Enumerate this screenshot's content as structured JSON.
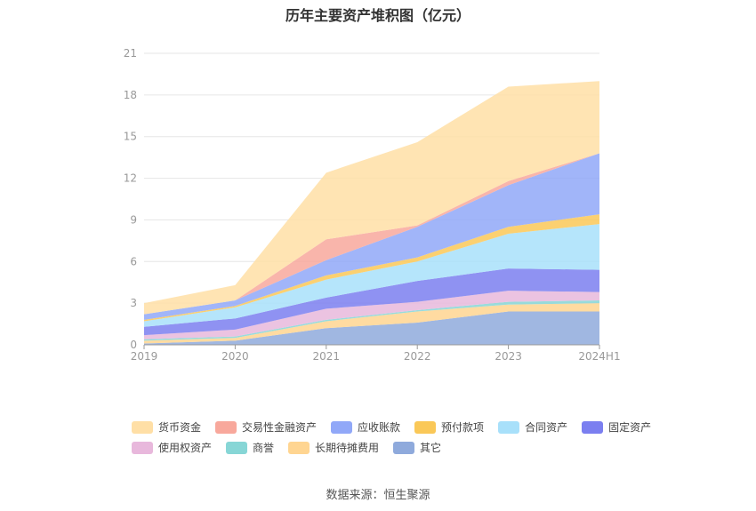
{
  "chart_data": {
    "type": "area",
    "stacked": true,
    "title": "历年主要资产堆积图（亿元）",
    "x": [
      "2019",
      "2020",
      "2021",
      "2022",
      "2023",
      "2024H1"
    ],
    "ylim": [
      0,
      21
    ],
    "yticks": [
      0,
      3,
      6,
      9,
      12,
      15,
      18,
      21
    ],
    "grid": true,
    "legend_position": "bottom",
    "series": [
      {
        "name": "其它",
        "color": "#8faadc",
        "values": [
          0.1,
          0.3,
          1.2,
          1.6,
          2.4,
          2.4
        ]
      },
      {
        "name": "长期待摊费用",
        "color": "#ffd591",
        "values": [
          0.2,
          0.2,
          0.5,
          0.8,
          0.5,
          0.6
        ]
      },
      {
        "name": "商誉",
        "color": "#87d6d6",
        "values": [
          0.1,
          0.1,
          0.1,
          0.1,
          0.2,
          0.2
        ]
      },
      {
        "name": "使用权资产",
        "color": "#e8b8dc",
        "values": [
          0.3,
          0.5,
          0.8,
          0.6,
          0.8,
          0.6
        ]
      },
      {
        "name": "固定资产",
        "color": "#7b7ff0",
        "values": [
          0.6,
          0.8,
          0.8,
          1.5,
          1.6,
          1.6
        ]
      },
      {
        "name": "合同资产",
        "color": "#a8e0fa",
        "values": [
          0.4,
          0.8,
          1.3,
          1.4,
          2.5,
          3.3
        ]
      },
      {
        "name": "预付款项",
        "color": "#fac858",
        "values": [
          0.1,
          0.1,
          0.3,
          0.3,
          0.5,
          0.7
        ]
      },
      {
        "name": "应收账款",
        "color": "#91a8f8",
        "values": [
          0.4,
          0.4,
          1.1,
          2.2,
          3.0,
          4.4
        ]
      },
      {
        "name": "交易性金融资产",
        "color": "#f8a89c",
        "values": [
          0.0,
          0.0,
          1.5,
          0.1,
          0.3,
          0.0
        ]
      },
      {
        "name": "货币资金",
        "color": "#ffdfa6",
        "values": [
          0.8,
          1.1,
          4.8,
          6.0,
          6.8,
          5.2
        ]
      }
    ]
  },
  "legend": {
    "rows": [
      [
        {
          "label": "货币资金",
          "color": "#ffdfa6"
        },
        {
          "label": "交易性金融资产",
          "color": "#f8a89c"
        },
        {
          "label": "应收账款",
          "color": "#91a8f8"
        },
        {
          "label": "预付款项",
          "color": "#fac858"
        },
        {
          "label": "合同资产",
          "color": "#a8e0fa"
        },
        {
          "label": "固定资产",
          "color": "#7b7ff0"
        }
      ],
      [
        {
          "label": "使用权资产",
          "color": "#e8b8dc"
        },
        {
          "label": "商誉",
          "color": "#87d6d6"
        },
        {
          "label": "长期待摊费用",
          "color": "#ffd591"
        },
        {
          "label": "其它",
          "color": "#8faadc"
        }
      ]
    ]
  },
  "source": "数据来源：恒生聚源"
}
